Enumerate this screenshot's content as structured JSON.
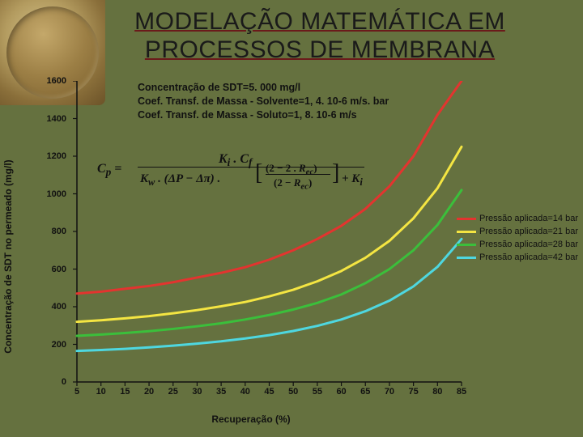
{
  "title": "MODELAÇÃO MATEMÁTICA EM PROCESSOS DE MEMBRANA",
  "chart": {
    "type": "line",
    "background_color": "#65713f",
    "grid_on": false,
    "axis_color": "#111111",
    "line_width": 3,
    "xlabel": "Recuperação (%)",
    "ylabel": "Concentração de SDT no permeado (mg/l)",
    "label_fontsize": 12,
    "xlim": [
      5,
      85
    ],
    "ylim": [
      0,
      1600
    ],
    "xtick_step": 5,
    "ytick_step": 200,
    "xticks": [
      5,
      10,
      15,
      20,
      25,
      30,
      35,
      40,
      45,
      50,
      55,
      60,
      65,
      70,
      75,
      80,
      85
    ],
    "yticks": [
      0,
      200,
      400,
      600,
      800,
      1000,
      1200,
      1400,
      1600
    ],
    "annotation": {
      "lines": [
        "Concentração de SDT=5. 000 mg/l",
        "Coef. Transf. de Massa - Solvente=1, 4. 10-6 m/s. bar",
        "Coef. Transf. de Massa - Soluto=1, 8. 10-6 m/s"
      ],
      "fontsize": 12.5,
      "fontweight": "bold"
    },
    "formula": {
      "lhs": "C_p =",
      "numerator": "K_i . C_f",
      "denom_left": "K_w . (ΔP − Δπ) .",
      "denom_bracket_top": "(2 − 2 . R_ec)",
      "denom_bracket_bot": "(2 − R_ec)",
      "denom_right": "+ K_i"
    },
    "legend": {
      "position": "right",
      "fontsize": 11,
      "items": [
        {
          "label": "Pressão aplicada=14 bar",
          "color": "#e3342f"
        },
        {
          "label": "Pressão aplicada=21 bar",
          "color": "#f4e542"
        },
        {
          "label": "Pressão aplicada=28 bar",
          "color": "#3bbf3b"
        },
        {
          "label": "Pressão aplicada=42 bar",
          "color": "#4ed7e0"
        }
      ]
    },
    "series": [
      {
        "name": "p14",
        "color": "#e3342f",
        "x": [
          5,
          10,
          15,
          20,
          25,
          30,
          35,
          40,
          45,
          50,
          55,
          60,
          65,
          70,
          75,
          80,
          85
        ],
        "y": [
          470,
          480,
          495,
          510,
          530,
          555,
          580,
          610,
          650,
          700,
          760,
          830,
          920,
          1040,
          1200,
          1420,
          1700
        ]
      },
      {
        "name": "p21",
        "color": "#f4e542",
        "x": [
          5,
          10,
          15,
          20,
          25,
          30,
          35,
          40,
          45,
          50,
          55,
          60,
          65,
          70,
          75,
          80,
          85
        ],
        "y": [
          320,
          328,
          338,
          350,
          365,
          382,
          402,
          425,
          455,
          490,
          535,
          590,
          660,
          750,
          870,
          1030,
          1250
        ]
      },
      {
        "name": "p28",
        "color": "#3bbf3b",
        "x": [
          5,
          10,
          15,
          20,
          25,
          30,
          35,
          40,
          45,
          50,
          55,
          60,
          65,
          70,
          75,
          80,
          85
        ],
        "y": [
          245,
          252,
          260,
          270,
          282,
          296,
          312,
          332,
          356,
          385,
          420,
          465,
          525,
          600,
          700,
          835,
          1020
        ]
      },
      {
        "name": "p42",
        "color": "#4ed7e0",
        "x": [
          5,
          10,
          15,
          20,
          25,
          30,
          35,
          40,
          45,
          50,
          55,
          60,
          65,
          70,
          75,
          80,
          85
        ],
        "y": [
          165,
          170,
          176,
          184,
          193,
          204,
          216,
          231,
          249,
          271,
          298,
          332,
          376,
          432,
          508,
          612,
          760
        ]
      }
    ]
  }
}
